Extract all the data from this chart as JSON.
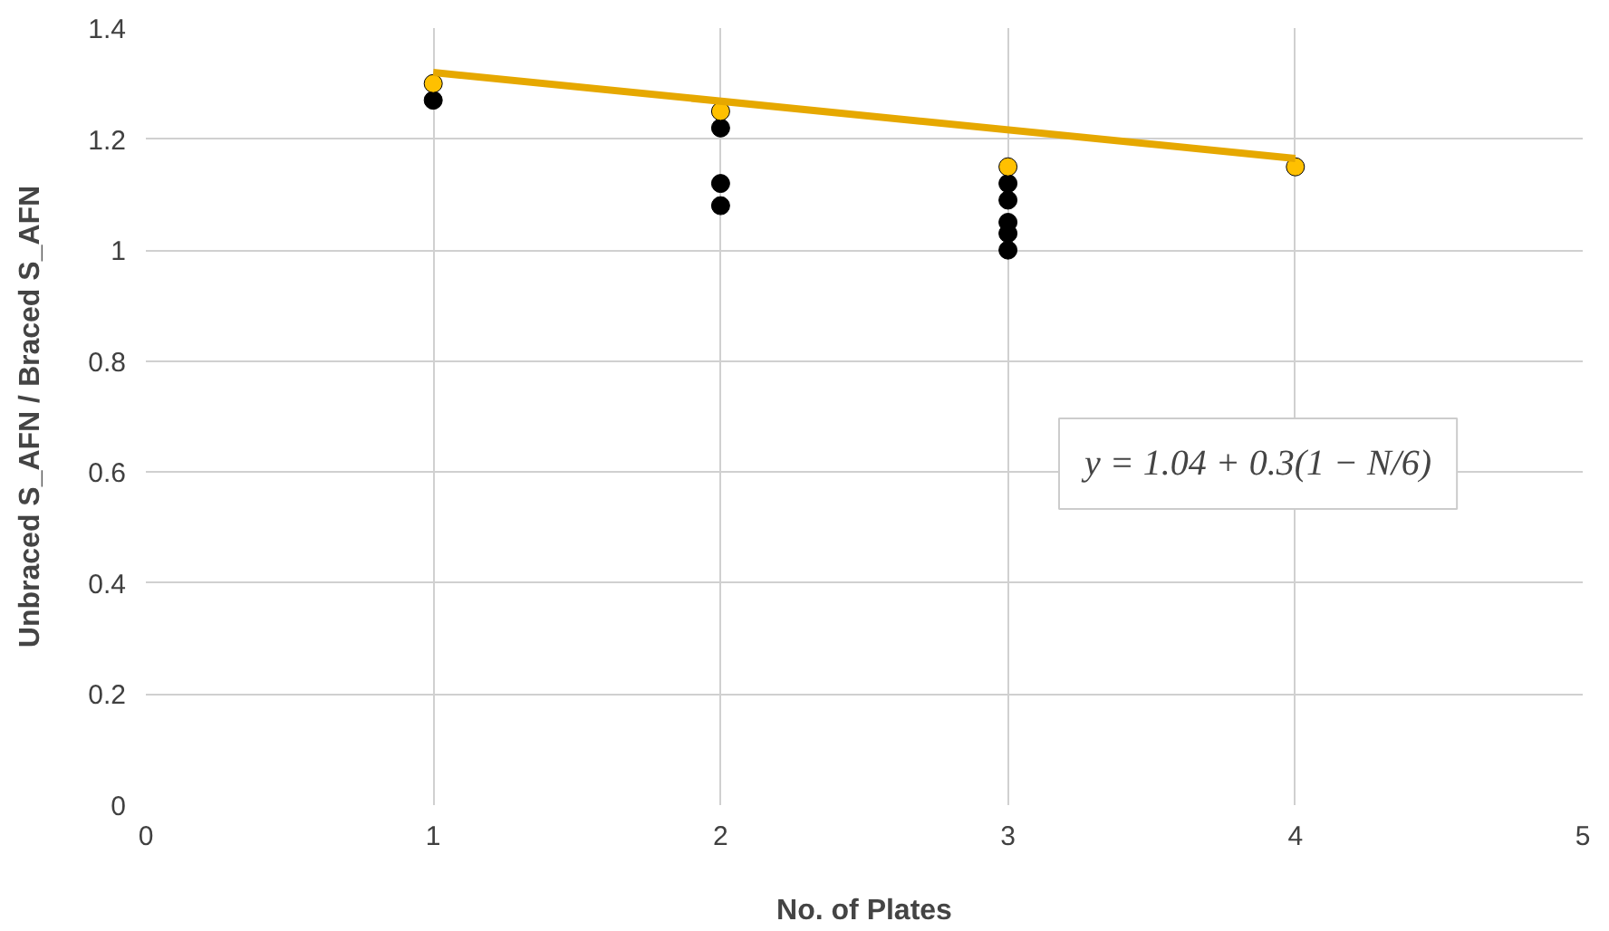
{
  "chart_data": {
    "type": "scatter",
    "xlabel": "No. of Plates",
    "ylabel": "Unbraced S_AFN / Braced S_AFN",
    "xlim": [
      0,
      5
    ],
    "xticks": [
      0,
      1,
      2,
      3,
      4,
      5
    ],
    "ylim": [
      0,
      1.4
    ],
    "yticks": [
      0,
      0.2,
      0.4,
      0.6,
      0.8,
      1,
      1.2,
      1.4
    ],
    "grid": true,
    "marker": "circle",
    "series": [
      {
        "color": "#000000",
        "x": [
          1,
          2,
          2,
          2,
          3,
          3,
          3,
          3,
          3
        ],
        "values": [
          1.27,
          1.22,
          1.12,
          1.08,
          1.12,
          1.09,
          1.05,
          1.03,
          1.0
        ]
      },
      {
        "color": "#ffc000",
        "x": [
          1,
          2,
          3,
          4
        ],
        "values": [
          1.3,
          1.25,
          1.15,
          1.15
        ]
      },
      {
        "type": "line",
        "marker": "none",
        "color": "#e6a800",
        "x": [
          1,
          4
        ],
        "values": [
          1.32,
          1.165
        ]
      }
    ],
    "annotations": [
      "y = 1.04 + 0.3(1 − N/6)"
    ]
  }
}
